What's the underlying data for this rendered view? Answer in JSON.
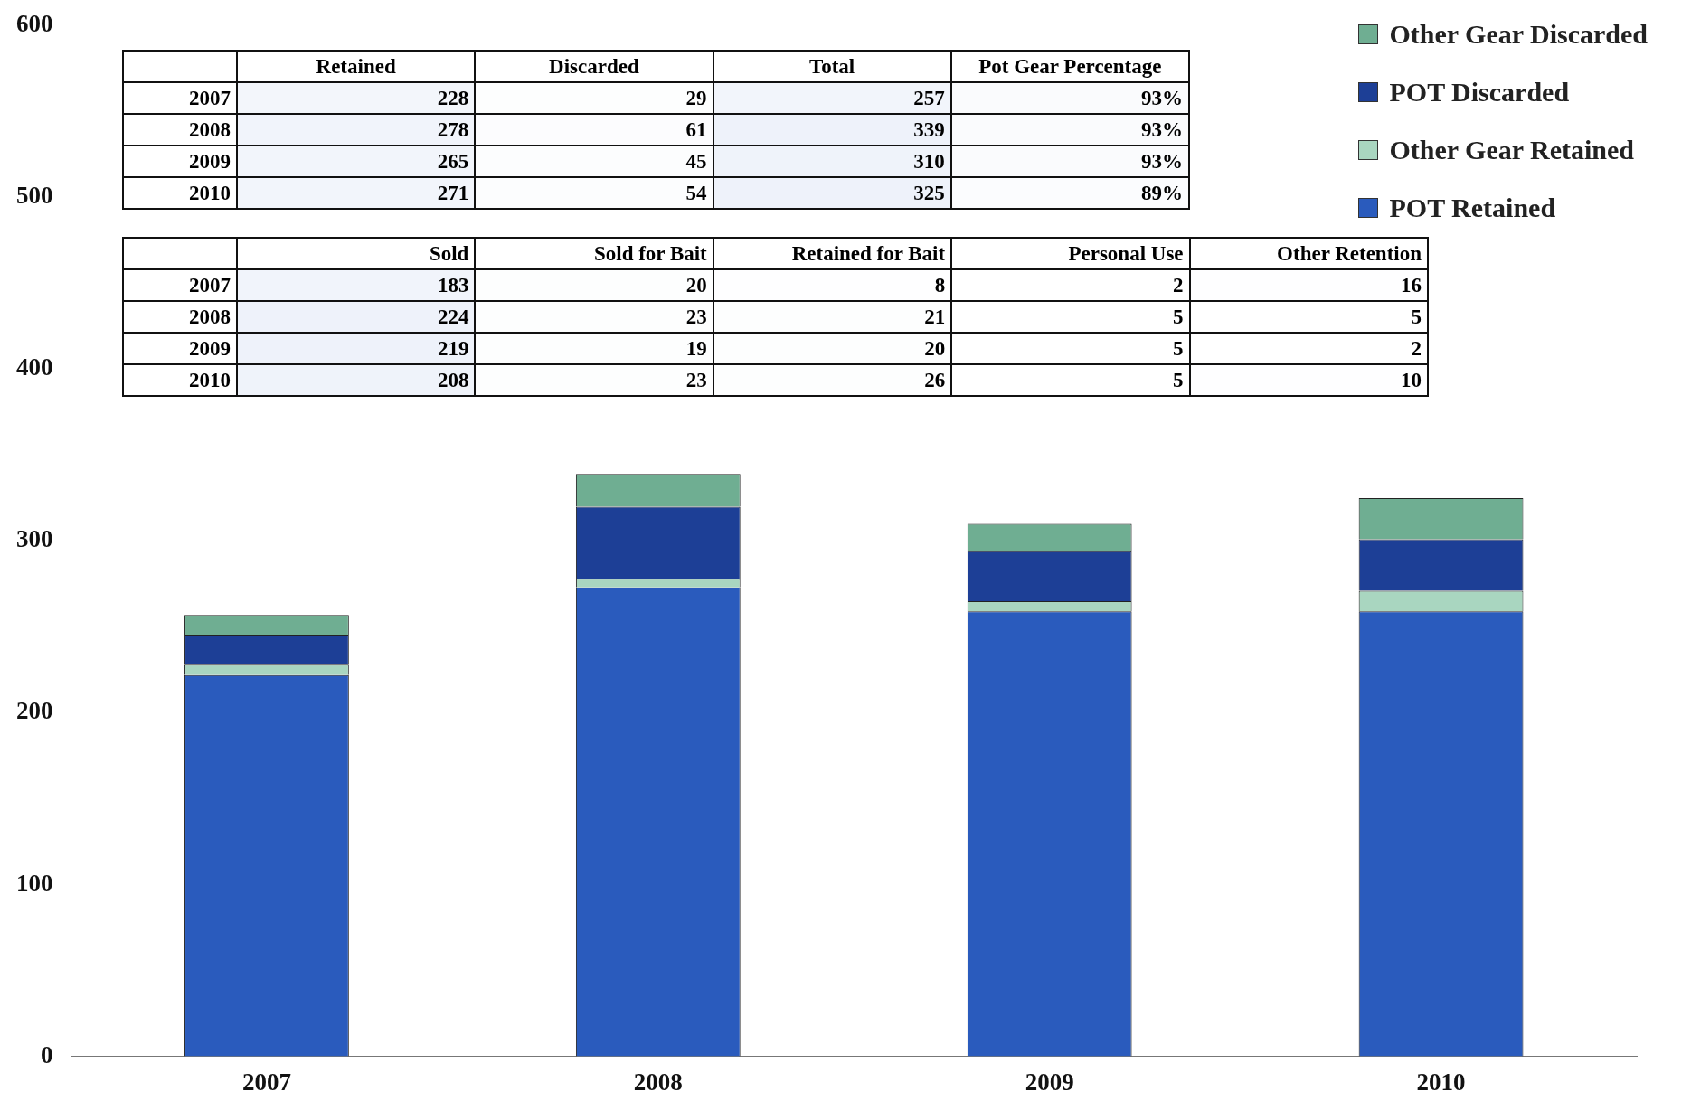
{
  "chart_data": [
    {
      "type": "bar",
      "stacked": true,
      "categories": [
        "2007",
        "2008",
        "2009",
        "2010"
      ],
      "ylim": [
        0,
        600
      ],
      "yticks": [
        0,
        100,
        200,
        300,
        400,
        500,
        600
      ],
      "grid": false,
      "legend": "top right",
      "series": [
        {
          "name": "POT Retained",
          "color": "#2a5bbd",
          "values": [
            222,
            273,
            259,
            259
          ]
        },
        {
          "name": "Other Gear Retained",
          "color": "#a9d6c0",
          "values": [
            6,
            5,
            6,
            12
          ]
        },
        {
          "name": "POT Discarded",
          "color": "#1d3f96",
          "values": [
            17,
            42,
            29,
            30
          ]
        },
        {
          "name": "Other Gear Discarded",
          "color": "#6fae92",
          "values": [
            12,
            19,
            16,
            24
          ]
        }
      ]
    },
    {
      "type": "heatmap",
      "categories": [
        "Retained",
        "Discarded",
        "Total",
        "Pot Gear Percentage"
      ],
      "y_categories": [
        "2007",
        "2008",
        "2009",
        "2010"
      ],
      "cells": [
        [
          228,
          29,
          257,
          93
        ],
        [
          278,
          61,
          339,
          93
        ],
        [
          265,
          45,
          310,
          93
        ],
        [
          271,
          54,
          325,
          89
        ]
      ],
      "cell_labels": [
        [
          "228",
          "29",
          "257",
          "93%"
        ],
        [
          "278",
          "61",
          "339",
          "93%"
        ],
        [
          "265",
          "45",
          "310",
          "93%"
        ],
        [
          "271",
          "54",
          "325",
          "89%"
        ]
      ]
    },
    {
      "type": "heatmap",
      "categories": [
        "Sold",
        "Sold for Bait",
        "Retained for Bait",
        "Personal Use",
        "Other Retention"
      ],
      "y_categories": [
        "2007",
        "2008",
        "2009",
        "2010"
      ],
      "cells": [
        [
          183,
          20,
          8,
          2,
          16
        ],
        [
          224,
          23,
          21,
          5,
          5
        ],
        [
          219,
          19,
          20,
          5,
          2
        ],
        [
          208,
          23,
          26,
          5,
          10
        ]
      ],
      "cell_labels": [
        [
          "183",
          "20",
          "8",
          "2",
          "16"
        ],
        [
          "224",
          "23",
          "21",
          "5",
          "5"
        ],
        [
          "219",
          "19",
          "20",
          "5",
          "2"
        ],
        [
          "208",
          "23",
          "26",
          "5",
          "10"
        ]
      ]
    }
  ]
}
